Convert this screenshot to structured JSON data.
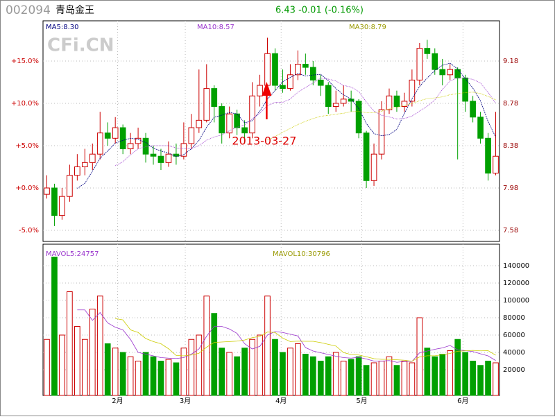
{
  "header": {
    "code": "002094",
    "name": "青岛金王",
    "quote": "6.43 -0.01 (-0.16%)"
  },
  "watermark": "CFi.CN",
  "chart_data": {
    "type": "candlestick",
    "candles": {
      "open": [
        7.92,
        7.98,
        7.72,
        7.9,
        8.1,
        8.18,
        8.22,
        8.3,
        8.5,
        8.45,
        8.55,
        8.35,
        8.4,
        8.45,
        8.3,
        8.28,
        8.22,
        8.3,
        8.28,
        8.4,
        8.55,
        8.62,
        8.92,
        8.75,
        8.5,
        8.68,
        8.55,
        8.5,
        8.85,
        8.95,
        9.25,
        8.95,
        8.92,
        9.05,
        9.15,
        9.12,
        9.0,
        8.95,
        8.75,
        8.78,
        8.82,
        8.8,
        8.5,
        8.05,
        8.3,
        8.72,
        8.85,
        8.75,
        8.8,
        9.0,
        9.3,
        9.25,
        9.1,
        9.05,
        9.1,
        9.02,
        8.8,
        8.65,
        8.45,
        8.12
      ],
      "high": [
        8.1,
        8.02,
        7.98,
        8.2,
        8.3,
        8.35,
        8.4,
        8.7,
        8.6,
        8.65,
        8.58,
        8.5,
        8.55,
        8.5,
        8.38,
        8.35,
        8.42,
        8.4,
        8.6,
        8.68,
        9.1,
        9.15,
        8.95,
        8.78,
        8.75,
        8.72,
        8.62,
        8.98,
        9.05,
        9.4,
        9.3,
        9.1,
        9.15,
        9.28,
        9.25,
        9.18,
        9.05,
        8.98,
        8.9,
        8.95,
        8.9,
        8.82,
        8.52,
        8.4,
        8.8,
        8.92,
        8.9,
        8.88,
        9.1,
        9.35,
        9.38,
        9.3,
        9.2,
        9.15,
        9.12,
        9.05,
        8.85,
        8.7,
        8.5,
        8.7
      ],
      "low": [
        7.88,
        7.62,
        7.68,
        7.85,
        8.05,
        8.1,
        8.15,
        8.25,
        8.38,
        8.4,
        8.3,
        8.3,
        8.35,
        8.22,
        8.2,
        8.15,
        8.18,
        8.2,
        8.25,
        8.35,
        8.5,
        8.6,
        8.6,
        8.4,
        8.45,
        8.48,
        8.4,
        8.45,
        8.75,
        8.9,
        8.9,
        8.88,
        8.9,
        9.0,
        9.05,
        8.95,
        8.85,
        8.68,
        8.7,
        8.75,
        8.7,
        8.45,
        7.98,
        8.0,
        8.25,
        8.68,
        8.7,
        8.7,
        8.75,
        8.95,
        9.2,
        9.05,
        8.95,
        9.0,
        8.25,
        8.7,
        8.6,
        8.4,
        8.05,
        8.1
      ],
      "close": [
        7.98,
        7.72,
        7.9,
        8.1,
        8.18,
        8.22,
        8.3,
        8.5,
        8.45,
        8.55,
        8.35,
        8.4,
        8.45,
        8.3,
        8.28,
        8.22,
        8.3,
        8.28,
        8.4,
        8.55,
        8.62,
        8.92,
        8.75,
        8.5,
        8.68,
        8.55,
        8.5,
        8.85,
        8.95,
        9.25,
        8.95,
        8.92,
        9.05,
        9.15,
        9.12,
        9.0,
        8.95,
        8.75,
        8.78,
        8.82,
        8.8,
        8.5,
        8.05,
        8.3,
        8.72,
        8.85,
        8.75,
        8.8,
        9.0,
        9.3,
        9.25,
        9.1,
        9.05,
        9.1,
        9.02,
        8.8,
        8.65,
        8.45,
        8.12,
        8.28
      ]
    },
    "volume": [
      55000,
      150000,
      60000,
      110000,
      70000,
      55000,
      90000,
      105000,
      50000,
      45000,
      40000,
      35000,
      30000,
      40000,
      35000,
      30000,
      32000,
      28000,
      45000,
      55000,
      60000,
      105000,
      85000,
      45000,
      40000,
      35000,
      45000,
      55000,
      60000,
      105000,
      55000,
      40000,
      45000,
      50000,
      38000,
      35000,
      30000,
      35000,
      40000,
      30000,
      32000,
      35000,
      25000,
      28000,
      30000,
      35000,
      25000,
      30000,
      28000,
      80000,
      45000,
      35000,
      38000,
      42000,
      55000,
      40000,
      30000,
      25000,
      30000,
      28000
    ],
    "up_color": "#cc0000",
    "down_color": "#00a000",
    "ylim": [
      7.475,
      9.56
    ],
    "yticks": [
      7.58,
      7.98,
      8.38,
      8.78,
      9.18
    ],
    "y2lim": [
      -6.3125,
      19.75
    ],
    "y2ticks": [
      {
        "value": -5,
        "label": "-5.0%"
      },
      {
        "value": 0,
        "label": "+0.0%"
      },
      {
        "value": 5,
        "label": "+5.0%"
      },
      {
        "value": 10,
        "label": "+10.0%"
      },
      {
        "value": 15,
        "label": "+15.0%"
      }
    ],
    "xlim": [
      0,
      60
    ],
    "xticks": [
      {
        "value": 9.8,
        "label": "2月"
      },
      {
        "value": 18.7,
        "label": "3月"
      },
      {
        "value": 31.3,
        "label": "4月"
      },
      {
        "value": 41.9,
        "label": "5月"
      },
      {
        "value": 55.2,
        "label": "6月"
      }
    ],
    "volume_ylim": [
      -9600,
      164800
    ],
    "volume_yticks": [
      20000,
      40000,
      60000,
      80000,
      100000,
      120000,
      140000
    ],
    "indicators": [
      "MA5:8.30",
      "MA10:8.57",
      "MA30:8.79"
    ],
    "volume_indicators": [
      "MAVOL5:24757",
      "MAVOL10:30796"
    ],
    "annotation": {
      "label": "2013-03-27",
      "x": 29.4
    },
    "grid": true
  }
}
